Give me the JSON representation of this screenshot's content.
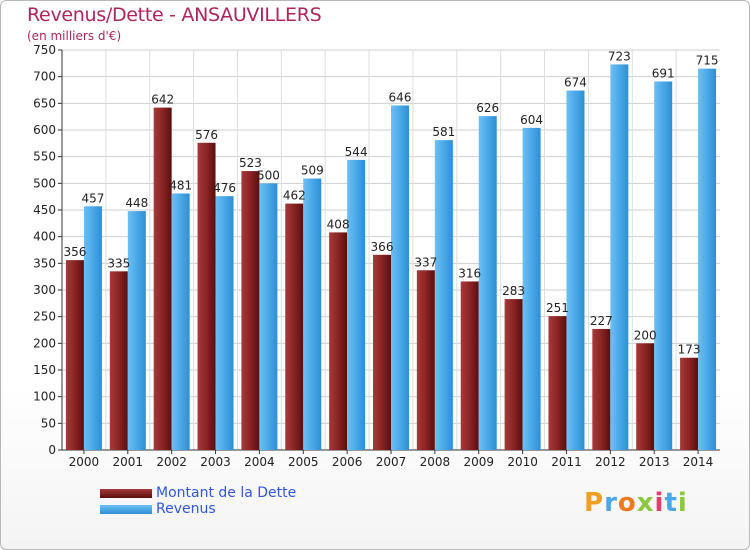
{
  "title": "Revenus/Dette - ANSAUVILLERS",
  "subtitle": "(en milliers d'€)",
  "colors": {
    "dette": "#7a1a1a",
    "revenus": "#4aa8e8",
    "title": "#b0245e",
    "legend_text": "#3355dd"
  },
  "legend": [
    {
      "label": "Montant de la Dette",
      "color": "#7a1a1a"
    },
    {
      "label": "Revenus",
      "color": "#4aa8e8"
    }
  ],
  "logo": {
    "text": "Proxiti"
  },
  "chart_data": {
    "type": "bar",
    "categories": [
      "2000",
      "2001",
      "2002",
      "2003",
      "2004",
      "2005",
      "2006",
      "2007",
      "2008",
      "2009",
      "2010",
      "2011",
      "2012",
      "2013",
      "2014"
    ],
    "series": [
      {
        "name": "Montant de la Dette",
        "values": [
          356,
          335,
          642,
          576,
          523,
          462,
          408,
          366,
          337,
          316,
          283,
          251,
          227,
          200,
          173
        ]
      },
      {
        "name": "Revenus",
        "values": [
          457,
          448,
          481,
          476,
          500,
          509,
          544,
          646,
          581,
          626,
          604,
          674,
          723,
          691,
          715
        ]
      }
    ],
    "title": "Revenus/Dette - ANSAUVILLERS",
    "ylabel": "(en milliers d'€)",
    "ylim": [
      0,
      750
    ],
    "yticks": [
      0,
      50,
      100,
      150,
      200,
      250,
      300,
      350,
      400,
      450,
      500,
      550,
      600,
      650,
      700,
      750
    ],
    "grid": true,
    "legend_position": "bottom-left"
  }
}
